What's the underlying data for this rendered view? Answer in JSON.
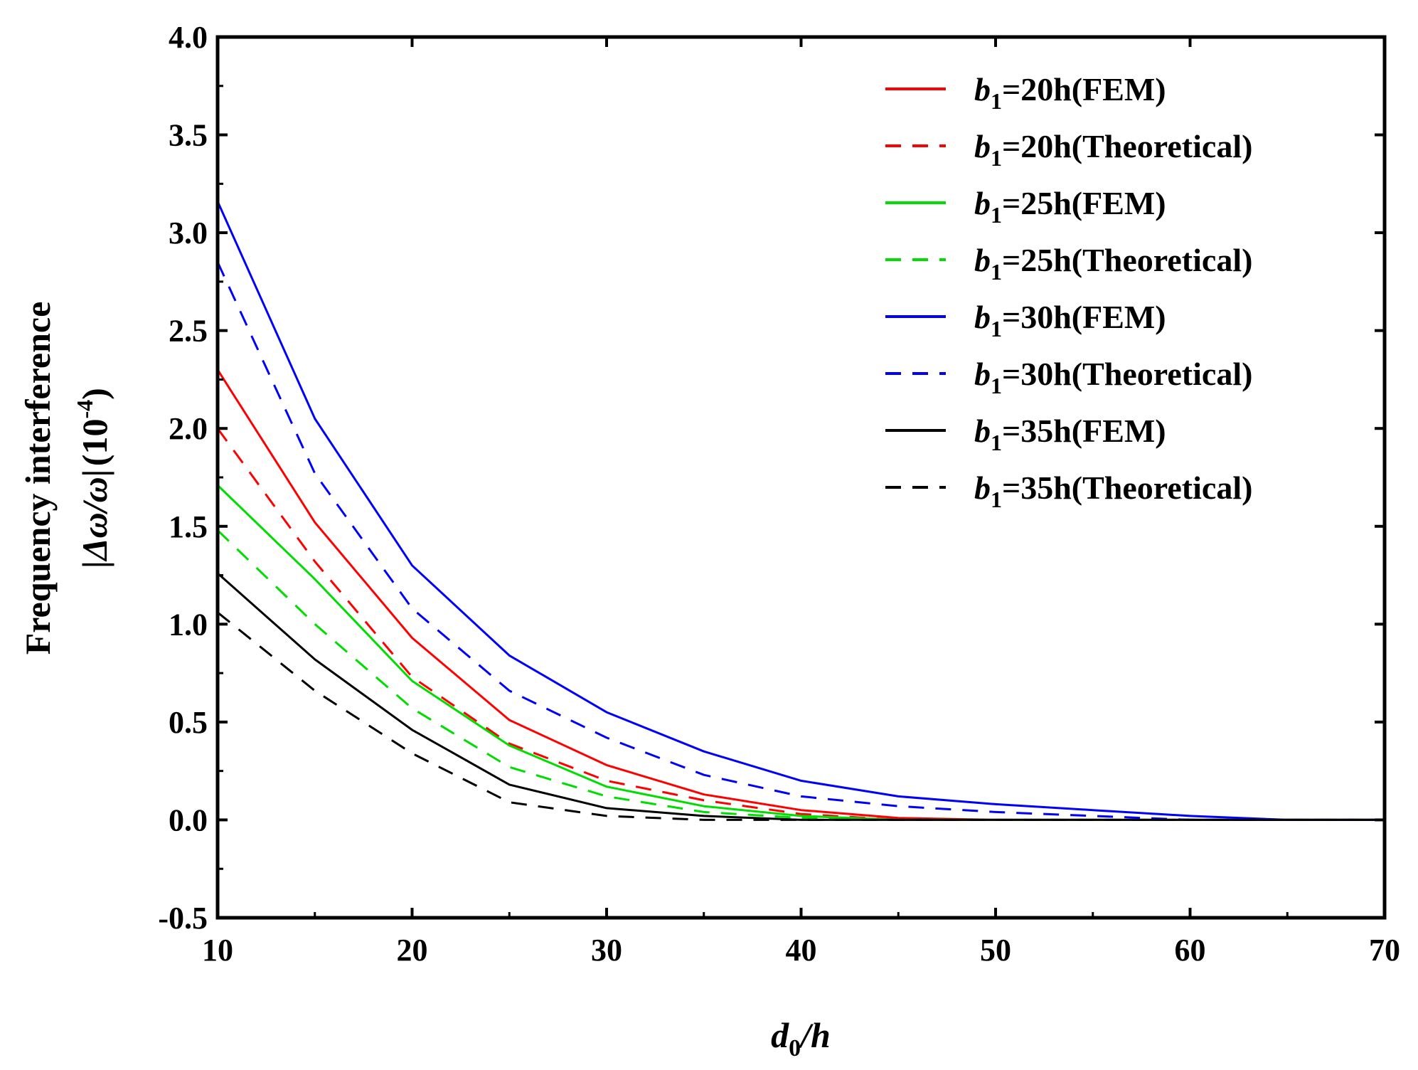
{
  "chart_data": {
    "type": "line",
    "title": "",
    "xlabel": {
      "var": "d",
      "sub": "0",
      "rest": "/h"
    },
    "ylabel": {
      "line1": "Frequency interference",
      "line2_left": "|Δω/ω|",
      "line2_unit": "(10",
      "line2_exp": "-4",
      "line2_close": ")"
    },
    "xlim": [
      10,
      70
    ],
    "ylim": [
      -0.5,
      4.0
    ],
    "xticks": [
      10,
      20,
      30,
      40,
      50,
      60,
      70
    ],
    "xtick_labels": [
      "10",
      "20",
      "30",
      "40",
      "50",
      "60",
      "70"
    ],
    "yticks": [
      -0.5,
      0.0,
      0.5,
      1.0,
      1.5,
      2.0,
      2.5,
      3.0,
      3.5,
      4.0
    ],
    "ytick_labels": [
      "-0.5",
      "0.0",
      "0.5",
      "1.0",
      "1.5",
      "2.0",
      "2.5",
      "3.0",
      "3.5",
      "4.0"
    ],
    "x": [
      10,
      15,
      20,
      25,
      30,
      35,
      40,
      45,
      50,
      55,
      60,
      65,
      70
    ],
    "legend_position": "top-right",
    "series": [
      {
        "name": "b1=20h(FEM)",
        "label_var": "b",
        "label_sub": "1",
        "label_rest": "=20h(FEM)",
        "color": "#ff0000",
        "dash": false,
        "values": [
          2.3,
          1.52,
          0.93,
          0.51,
          0.28,
          0.13,
          0.05,
          0.01,
          0.0,
          0.0,
          0.0,
          0.0,
          0.0
        ]
      },
      {
        "name": "b1=20h(Theoretical)",
        "label_var": "b",
        "label_sub": "1",
        "label_rest": "=20h(Theoretical)",
        "color": "#ff0000",
        "dash": true,
        "values": [
          2.0,
          1.32,
          0.73,
          0.39,
          0.2,
          0.1,
          0.03,
          0.0,
          0.0,
          0.0,
          0.0,
          0.0,
          0.0
        ]
      },
      {
        "name": "b1=25h(FEM)",
        "label_var": "b",
        "label_sub": "1",
        "label_rest": "=25h(FEM)",
        "color": "#00dd00",
        "dash": false,
        "values": [
          1.71,
          1.23,
          0.71,
          0.38,
          0.17,
          0.07,
          0.02,
          0.0,
          0.0,
          0.0,
          0.0,
          0.0,
          0.0
        ]
      },
      {
        "name": "b1=25h(Theoretical)",
        "label_var": "b",
        "label_sub": "1",
        "label_rest": "=25h(Theoretical)",
        "color": "#00dd00",
        "dash": true,
        "values": [
          1.48,
          1.0,
          0.57,
          0.27,
          0.12,
          0.04,
          0.01,
          0.0,
          0.0,
          0.0,
          0.0,
          0.0,
          0.0
        ]
      },
      {
        "name": "b1=30h(FEM)",
        "label_var": "b",
        "label_sub": "1",
        "label_rest": "=30h(FEM)",
        "color": "#0000ff",
        "dash": false,
        "values": [
          3.16,
          2.05,
          1.3,
          0.84,
          0.55,
          0.35,
          0.2,
          0.12,
          0.08,
          0.05,
          0.02,
          0.0,
          0.0
        ]
      },
      {
        "name": "b1=30h(Theoretical)",
        "label_var": "b",
        "label_sub": "1",
        "label_rest": "=30h(Theoretical)",
        "color": "#0000ff",
        "dash": true,
        "values": [
          2.85,
          1.77,
          1.08,
          0.66,
          0.42,
          0.23,
          0.12,
          0.07,
          0.04,
          0.02,
          0.0,
          0.0,
          0.0
        ]
      },
      {
        "name": "b1=35h(FEM)",
        "label_var": "b",
        "label_sub": "1",
        "label_rest": "=35h(FEM)",
        "color": "#000000",
        "dash": false,
        "values": [
          1.26,
          0.82,
          0.46,
          0.18,
          0.06,
          0.02,
          0.0,
          0.0,
          0.0,
          0.0,
          0.0,
          0.0,
          0.0
        ]
      },
      {
        "name": "b1=35h(Theoretical)",
        "label_var": "b",
        "label_sub": "1",
        "label_rest": "=35h(Theoretical)",
        "color": "#000000",
        "dash": true,
        "values": [
          1.06,
          0.66,
          0.34,
          0.09,
          0.02,
          0.0,
          0.0,
          0.0,
          0.0,
          0.0,
          0.0,
          0.0,
          0.0
        ]
      }
    ]
  }
}
